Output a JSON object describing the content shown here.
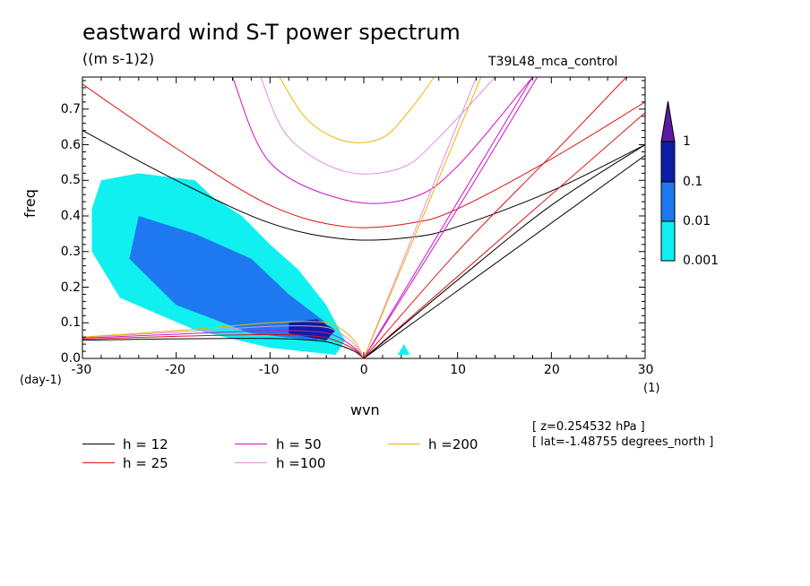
{
  "title": "eastward wind S-T power spectrum",
  "units": "((m s-1)2)",
  "experiment": "T39L48_mca_control",
  "xlabel": "wvn",
  "ylabel": "freq",
  "y_unit": "(day-1)",
  "x_unit": "(1)",
  "info": {
    "level": "[ z=0.254532 hPa ]",
    "latitude": "[ lat=-1.48755 degrees_north ]"
  },
  "colorbar": {
    "labels": [
      "1",
      "0.1",
      "0.01",
      "0.001"
    ],
    "colors": [
      "#5b1aa0",
      "#0a1ea8",
      "#1e78f0",
      "#10f0f0"
    ]
  },
  "legend": [
    {
      "label": "h = 12",
      "color": "#000000"
    },
    {
      "label": "h = 25",
      "color": "#e01010"
    },
    {
      "label": "h = 50",
      "color": "#d010c8"
    },
    {
      "label": "h =200",
      "color": "#f0b400"
    },
    {
      "label": "h =100",
      "color": "#e090e0"
    }
  ],
  "chart_data": {
    "type": "heatmap",
    "title": "eastward wind S-T power spectrum",
    "xlabel": "wvn",
    "ylabel": "freq",
    "xlim": [
      -30,
      30
    ],
    "ylim": [
      0,
      0.79
    ],
    "x_ticks": [
      -30,
      -20,
      -10,
      0,
      10,
      20,
      30
    ],
    "y_ticks": [
      0.0,
      0.1,
      0.2,
      0.3,
      0.4,
      0.5,
      0.6,
      0.7
    ],
    "x_tick_labels": [
      "-30",
      "-20",
      "-10",
      "0",
      "10",
      "20",
      "30"
    ],
    "y_tick_labels": [
      "0.0",
      "0.1",
      "0.2",
      "0.3",
      "0.4",
      "0.5",
      "0.6",
      "0.7"
    ],
    "contour_levels": [
      0.001,
      0.01,
      0.1,
      1
    ],
    "power_regions": [
      {
        "level": 0.001,
        "polygon": [
          [
            -28,
            0.5
          ],
          [
            -24,
            0.52
          ],
          [
            -18,
            0.5
          ],
          [
            -16,
            0.45
          ],
          [
            -13,
            0.4
          ],
          [
            -10,
            0.32
          ],
          [
            -7,
            0.25
          ],
          [
            -4,
            0.15
          ],
          [
            -2,
            0.05
          ],
          [
            -3,
            0.01
          ],
          [
            -10,
            0.03
          ],
          [
            -18,
            0.08
          ],
          [
            -26,
            0.17
          ],
          [
            -29,
            0.3
          ],
          [
            -29,
            0.42
          ]
        ]
      },
      {
        "level": 0.01,
        "polygon": [
          [
            -24,
            0.4
          ],
          [
            -18,
            0.35
          ],
          [
            -12,
            0.28
          ],
          [
            -8,
            0.18
          ],
          [
            -4,
            0.1
          ],
          [
            -5,
            0.05
          ],
          [
            -12,
            0.07
          ],
          [
            -20,
            0.15
          ],
          [
            -25,
            0.28
          ]
        ]
      },
      {
        "level": 0.1,
        "polygon": [
          [
            -8,
            0.1
          ],
          [
            -5,
            0.11
          ],
          [
            -3,
            0.08
          ],
          [
            -4,
            0.05
          ],
          [
            -8,
            0.07
          ]
        ]
      },
      {
        "level": 0.001,
        "polygon": [
          [
            3.6,
            0.01
          ],
          [
            4.3,
            0.04
          ],
          [
            4.9,
            0.01
          ]
        ]
      }
    ],
    "dispersion_curves": [
      {
        "h": 12,
        "color": "#000000",
        "type": "equatorial-rossby",
        "x": [
          -30,
          -20,
          -10,
          -5,
          -3,
          -1,
          0
        ],
        "y": [
          0.051,
          0.055,
          0.056,
          0.05,
          0.04,
          0.02,
          0.0
        ]
      },
      {
        "h": 25,
        "color": "#e01010",
        "type": "equatorial-rossby",
        "x": [
          -30,
          -20,
          -10,
          -5,
          -3,
          -1,
          0
        ],
        "y": [
          0.054,
          0.062,
          0.067,
          0.062,
          0.05,
          0.025,
          0.0
        ]
      },
      {
        "h": 50,
        "color": "#d010c8",
        "type": "equatorial-rossby",
        "x": [
          -30,
          -20,
          -10,
          -5,
          -3,
          -1,
          0
        ],
        "y": [
          0.057,
          0.068,
          0.078,
          0.075,
          0.063,
          0.03,
          0.0
        ]
      },
      {
        "h": 100,
        "color": "#e090e0",
        "type": "equatorial-rossby",
        "x": [
          -30,
          -20,
          -10,
          -5,
          -3,
          -1,
          0
        ],
        "y": [
          0.059,
          0.074,
          0.09,
          0.09,
          0.078,
          0.04,
          0.0
        ]
      },
      {
        "h": 200,
        "color": "#f0b400",
        "type": "equatorial-rossby",
        "x": [
          -30,
          -20,
          -10,
          -5,
          -3,
          -1,
          0
        ],
        "y": [
          0.06,
          0.078,
          0.1,
          0.103,
          0.092,
          0.05,
          0.0
        ]
      },
      {
        "h": 12,
        "color": "#000000",
        "type": "inertia-gravity",
        "x": [
          -30,
          -20,
          -10,
          -2,
          5,
          10,
          20,
          30
        ],
        "y": [
          0.64,
          0.5,
          0.38,
          0.335,
          0.34,
          0.37,
          0.47,
          0.6
        ]
      },
      {
        "h": 25,
        "color": "#e01010",
        "type": "inertia-gravity",
        "x": [
          -30,
          -20,
          -10,
          -2,
          5,
          10,
          20,
          30
        ],
        "y": [
          0.77,
          0.59,
          0.43,
          0.37,
          0.38,
          0.42,
          0.56,
          0.72
        ]
      },
      {
        "h": 50,
        "color": "#d010c8",
        "type": "inertia-gravity",
        "x": [
          -14,
          -10,
          -2,
          5,
          10,
          18
        ],
        "y": [
          0.79,
          0.55,
          0.445,
          0.45,
          0.54,
          0.79
        ]
      },
      {
        "h": 100,
        "color": "#e090e0",
        "type": "inertia-gravity",
        "x": [
          -11,
          -8,
          -2,
          4,
          8,
          14
        ],
        "y": [
          0.79,
          0.62,
          0.525,
          0.535,
          0.62,
          0.79
        ]
      },
      {
        "h": 200,
        "color": "#f0b400",
        "type": "inertia-gravity",
        "x": [
          -9,
          -6,
          -2,
          2,
          5,
          7.5
        ],
        "y": [
          0.79,
          0.67,
          0.61,
          0.62,
          0.7,
          0.79
        ]
      },
      {
        "h": 12,
        "color": "#000000",
        "type": "kelvin",
        "x": [
          0,
          30
        ],
        "y": [
          0.0,
          0.57
        ]
      },
      {
        "h": 25,
        "color": "#e01010",
        "type": "kelvin",
        "x": [
          0,
          30
        ],
        "y": [
          0.0,
          0.69
        ]
      },
      {
        "h": 50,
        "color": "#d010c8",
        "type": "kelvin",
        "x": [
          0,
          18
        ],
        "y": [
          0.0,
          0.79
        ]
      },
      {
        "h": 100,
        "color": "#e090e0",
        "type": "kelvin",
        "x": [
          0,
          12
        ],
        "y": [
          0.0,
          0.79
        ]
      },
      {
        "h": 200,
        "color": "#f0b400",
        "type": "kelvin",
        "x": [
          0,
          12.5
        ],
        "y": [
          0.0,
          0.79
        ]
      },
      {
        "h": 12,
        "color": "#000000",
        "type": "mixed-rossby-gravity",
        "x": [
          0,
          10,
          20,
          30
        ],
        "y": [
          0.0,
          0.22,
          0.43,
          0.6
        ]
      },
      {
        "h": 25,
        "color": "#e01010",
        "type": "mixed-rossby-gravity",
        "x": [
          0,
          10,
          20,
          28
        ],
        "y": [
          0.0,
          0.3,
          0.57,
          0.79
        ]
      },
      {
        "h": 50,
        "color": "#d010c8",
        "type": "mixed-rossby-gravity",
        "x": [
          0,
          10,
          18.5
        ],
        "y": [
          0.0,
          0.42,
          0.79
        ]
      }
    ]
  }
}
